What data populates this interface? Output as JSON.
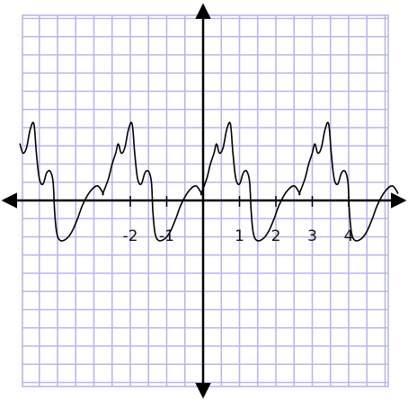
{
  "chart_data": {
    "type": "line",
    "grid": true,
    "grid_color": "#b9b7e8",
    "axis_color": "#000000",
    "curve_color": "#000000",
    "background": "#ffffff",
    "xlim": [
      -5.1,
      5.1
    ],
    "ylim": [
      -5.1,
      5.1
    ],
    "grid_step": 0.5,
    "tick_labels": [
      {
        "x": -2,
        "text": "-2"
      },
      {
        "x": -1,
        "text": "-1"
      },
      {
        "x": 1,
        "text": "1"
      },
      {
        "x": 2,
        "text": "2"
      },
      {
        "x": 3,
        "text": "3"
      },
      {
        "x": 4,
        "text": "4"
      }
    ],
    "period": 2.7,
    "series": [
      {
        "points_one_period": [
          [
            -0.05,
            0.2
          ],
          [
            0.1,
            0.6
          ],
          [
            0.2,
            1.0
          ],
          [
            0.3,
            1.3
          ],
          [
            0.37,
            1.55
          ],
          [
            0.45,
            1.3
          ],
          [
            0.55,
            1.45
          ],
          [
            0.65,
            1.95
          ],
          [
            0.75,
            2.1
          ],
          [
            0.82,
            1.3
          ],
          [
            0.9,
            0.6
          ],
          [
            1.0,
            0.45
          ],
          [
            1.1,
            0.75
          ],
          [
            1.2,
            0.8
          ],
          [
            1.28,
            0.5
          ],
          [
            1.32,
            -0.3
          ],
          [
            1.38,
            -0.9
          ],
          [
            1.48,
            -1.1
          ],
          [
            1.65,
            -1.05
          ],
          [
            1.8,
            -0.85
          ],
          [
            1.95,
            -0.5
          ],
          [
            2.1,
            -0.1
          ],
          [
            2.3,
            0.25
          ],
          [
            2.5,
            0.4
          ],
          [
            2.65,
            0.2
          ]
        ]
      }
    ]
  }
}
